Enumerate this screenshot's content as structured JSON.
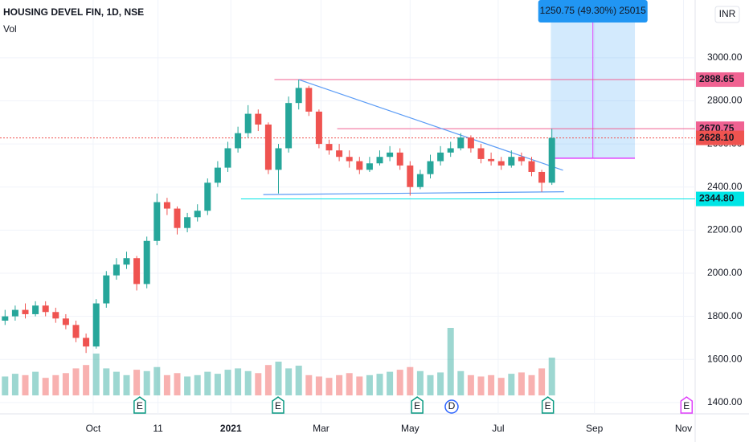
{
  "chart_data": {
    "type": "candlestick",
    "title": "HOUSING DEVEL FIN, 1D, NSE",
    "volume_title": "Vol",
    "currency": "INR",
    "x": [
      0,
      1,
      2,
      3,
      4,
      5,
      6,
      7,
      8,
      9,
      10,
      11,
      12,
      13,
      14,
      15,
      16,
      17,
      18,
      19,
      20,
      21,
      22,
      23,
      24,
      25,
      26,
      27,
      28,
      29,
      30,
      31,
      32,
      33,
      34,
      35,
      36,
      37,
      38,
      39,
      40,
      41,
      42,
      43,
      44,
      45,
      46,
      47,
      48,
      49,
      50,
      51,
      52,
      53,
      54
    ],
    "open": [
      1780,
      1800,
      1830,
      1810,
      1850,
      1820,
      1790,
      1760,
      1700,
      1660,
      1860,
      1990,
      2040,
      2070,
      1950,
      2150,
      2330,
      2300,
      2210,
      2260,
      2290,
      2420,
      2490,
      2580,
      2650,
      2740,
      2690,
      2480,
      2580,
      2790,
      2860,
      2750,
      2600,
      2570,
      2540,
      2520,
      2480,
      2510,
      2540,
      2560,
      2500,
      2400,
      2460,
      2520,
      2560,
      2580,
      2630,
      2580,
      2530,
      2520,
      2500,
      2540,
      2520,
      2470,
      2420
    ],
    "high": [
      1830,
      1850,
      1860,
      1870,
      1870,
      1840,
      1810,
      1780,
      1720,
      1880,
      2010,
      2070,
      2100,
      2080,
      2170,
      2370,
      2350,
      2310,
      2280,
      2320,
      2440,
      2520,
      2610,
      2680,
      2780,
      2760,
      2700,
      2600,
      2820,
      2898.65,
      2870,
      2760,
      2620,
      2600,
      2570,
      2540,
      2540,
      2570,
      2590,
      2580,
      2520,
      2480,
      2550,
      2590,
      2610,
      2650,
      2640,
      2600,
      2560,
      2540,
      2570,
      2560,
      2540,
      2480,
      2670.75
    ],
    "low": [
      1760,
      1780,
      1790,
      1800,
      1800,
      1770,
      1740,
      1680,
      1630,
      1650,
      1840,
      1970,
      2020,
      1920,
      1930,
      2130,
      2270,
      2180,
      2190,
      2240,
      2270,
      2400,
      2470,
      2560,
      2630,
      2660,
      2460,
      2370,
      2560,
      2760,
      2730,
      2580,
      2550,
      2520,
      2490,
      2460,
      2470,
      2500,
      2520,
      2480,
      2360,
      2390,
      2440,
      2500,
      2540,
      2570,
      2560,
      2510,
      2500,
      2480,
      2490,
      2500,
      2450,
      2377,
      2410
    ],
    "close": [
      1800,
      1830,
      1810,
      1850,
      1820,
      1790,
      1760,
      1700,
      1660,
      1860,
      1990,
      2040,
      2070,
      1950,
      2150,
      2330,
      2300,
      2210,
      2260,
      2290,
      2420,
      2490,
      2580,
      2650,
      2740,
      2690,
      2480,
      2580,
      2790,
      2860,
      2750,
      2600,
      2570,
      2540,
      2520,
      2480,
      2510,
      2540,
      2560,
      2500,
      2400,
      2460,
      2520,
      2560,
      2580,
      2630,
      2580,
      2530,
      2520,
      2500,
      2540,
      2520,
      2470,
      2420,
      2628.1
    ],
    "volume": [
      28,
      32,
      30,
      35,
      26,
      30,
      33,
      40,
      45,
      62,
      40,
      35,
      30,
      38,
      36,
      42,
      30,
      33,
      28,
      30,
      35,
      32,
      38,
      40,
      36,
      33,
      45,
      50,
      40,
      44,
      30,
      28,
      26,
      30,
      33,
      28,
      30,
      32,
      35,
      38,
      42,
      36,
      30,
      34,
      100,
      36,
      30,
      28,
      30,
      26,
      32,
      34,
      30,
      40,
      56
    ],
    "volume_lim": [
      0,
      100
    ],
    "up_color": "#26a69a",
    "down_color": "#ef5350",
    "xlim": [
      -0.5,
      68.15
    ],
    "ylim": [
      1366,
      3268
    ],
    "xticks": [
      {
        "value": 8.7,
        "label": "Oct"
      },
      {
        "value": 15.1,
        "label": "11"
      },
      {
        "value": 22.3,
        "label": "2021"
      },
      {
        "value": 31.2,
        "label": "Mar"
      },
      {
        "value": 40,
        "label": "May"
      },
      {
        "value": 48.7,
        "label": "Jul"
      },
      {
        "value": 58.2,
        "label": "Sep"
      },
      {
        "value": 67,
        "label": "Nov"
      }
    ],
    "yticks": [
      {
        "value": 3000,
        "label": "3000.00"
      },
      {
        "value": 2800,
        "label": "2800.00"
      },
      {
        "value": 2600,
        "label": "2600.00"
      },
      {
        "value": 2400,
        "label": "2400.00"
      },
      {
        "value": 2200,
        "label": "2200.00"
      },
      {
        "value": 2000,
        "label": "2000.00"
      },
      {
        "value": 1800,
        "label": "1800.00"
      },
      {
        "value": 1600,
        "label": "1600.00"
      },
      {
        "value": 1400,
        "label": "1400.00"
      }
    ],
    "levels": [
      {
        "value": 2898.65,
        "label": "2898.65",
        "color": "#f06292",
        "x0": 26.6
      },
      {
        "value": 2670.75,
        "label": "2670.75",
        "color": "#f06292",
        "x0": 32.8
      },
      {
        "value": 2628.1,
        "label": "2628.10",
        "color": "#ef5350",
        "x0": -0.5
      },
      {
        "value": 2344.8,
        "label": "2344.80",
        "color": "#00e5e5",
        "x0": 23.3
      }
    ],
    "trendlines": [
      {
        "x": [
          29,
          55.1
        ],
        "y": [
          2898.65,
          2478
        ]
      },
      {
        "x": [
          25.5,
          55.2
        ],
        "y": [
          2365,
          2378
        ]
      }
    ],
    "position": {
      "label": "1250.75 (49.30%) 25015",
      "entry": 2534,
      "x": [
        53.9,
        62.2
      ]
    },
    "events": [
      {
        "x": 13.3,
        "label": "E"
      },
      {
        "x": 26.96,
        "label": "E"
      },
      {
        "x": 40.7,
        "label": "E"
      },
      {
        "x": 44.1,
        "label": "D"
      },
      {
        "x": 53.6,
        "label": "E"
      },
      {
        "x": 67.3,
        "label": "E"
      }
    ]
  }
}
